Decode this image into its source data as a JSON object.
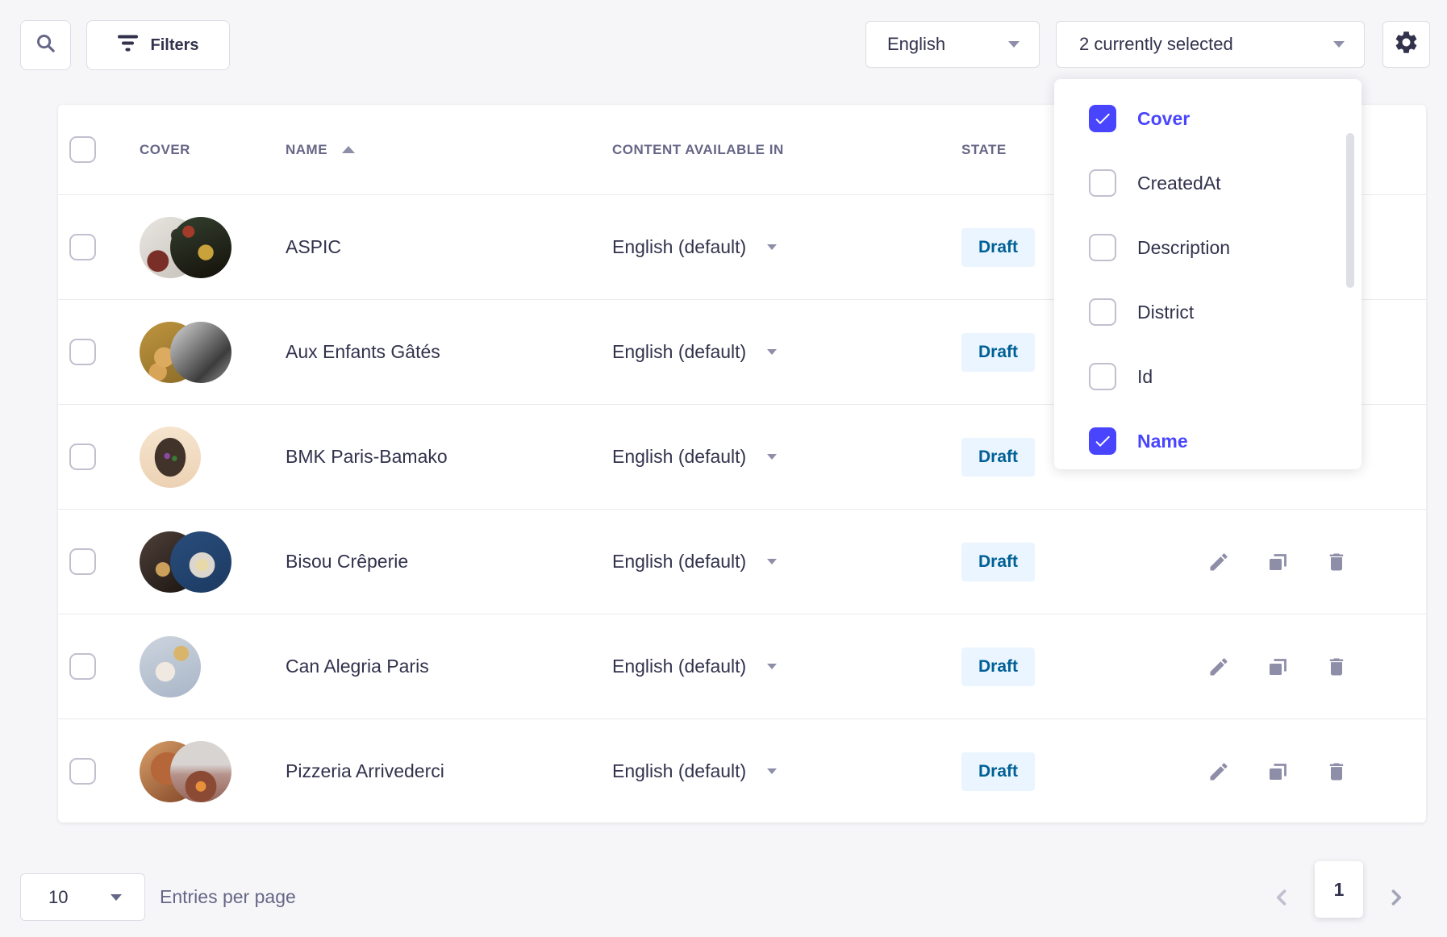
{
  "toolbar": {
    "filters_label": "Filters",
    "locale_select_value": "English",
    "columns_select_value": "2 currently selected"
  },
  "column_dropdown": {
    "items": [
      {
        "label": "Cover",
        "checked": true
      },
      {
        "label": "CreatedAt",
        "checked": false
      },
      {
        "label": "Description",
        "checked": false
      },
      {
        "label": "District",
        "checked": false
      },
      {
        "label": "Id",
        "checked": false
      },
      {
        "label": "Name",
        "checked": true
      }
    ]
  },
  "table": {
    "headers": {
      "cover": "COVER",
      "name": "NAME",
      "content": "CONTENT AVAILABLE IN",
      "state": "STATE"
    },
    "sort": {
      "column": "NAME",
      "direction": "ascending"
    },
    "rows": [
      {
        "name": "ASPIC",
        "content_available_in": "English (default)",
        "state": "Draft",
        "covers": [
          "radial-gradient(circle at 30% 72%, #7a2e28 0 17%, transparent 18%), radial-gradient(circle at 62% 30%, #3a3431 0 11%, transparent 12%), linear-gradient(140deg,#e9e5e0,#c6c1bb)",
          "radial-gradient(circle at 58% 58%, #c9a23c 0 15%, transparent 16%), radial-gradient(circle at 30% 24%, #a33b2a 0 9%, transparent 10%), linear-gradient(160deg,#33402f,#141009)"
        ]
      },
      {
        "name": "Aux Enfants Gâtés",
        "content_available_in": "English (default)",
        "state": "Draft",
        "covers": [
          "radial-gradient(circle at 40% 58%, #dcab60 0 19%, transparent 20%), radial-gradient(circle at 30% 82%, #d8a458 0 13%, transparent 14%), linear-gradient(150deg,#bf953f,#8a6a26)",
          "linear-gradient(135deg,#d9d9d9 0%,#8c8c8c 35%,#3c3c3c 70%,#9a9a9a 100%)"
        ]
      },
      {
        "name": "BMK Paris-Bamako",
        "content_available_in": "English (default)",
        "state": "Draft",
        "covers": [
          "radial-gradient(circle at 45% 48%, #8a4aa0 0 6%, transparent 7%), radial-gradient(circle at 57% 52%, #3a7a3a 0 5%, transparent 6%), radial-gradient(ellipse 32% 40% at 50% 50%, #42332a 0 78%, transparent 80%), linear-gradient(180deg,#f6e4ce,#ecd2b4)"
        ]
      },
      {
        "name": "Bisou Crêperie",
        "content_available_in": "English (default)",
        "state": "Draft",
        "covers": [
          "radial-gradient(circle at 38% 62%, #caa05a 0 13%, transparent 14%), linear-gradient(140deg,#50403a,#17120e)",
          "radial-gradient(circle at 52% 55%, #e8d9a8 0 13%, #dcd7ce 14% 27%, transparent 28%), linear-gradient(150deg,#2a4d7a,#1b3a63)"
        ]
      },
      {
        "name": "Can Alegria Paris",
        "content_available_in": "English (default)",
        "state": "Draft",
        "covers": [
          "radial-gradient(circle at 42% 58%, #efe9e2 0 19%, transparent 20%), radial-gradient(circle at 68% 28%, #d8b56a 0 12%, transparent 13%), radial-gradient(circle at 42% 58%, #b04a3a 0 6%, transparent 7%), linear-gradient(160deg,#ccd4dd,#a9b6c8)"
        ]
      },
      {
        "name": "Pizzeria Arrivederci",
        "content_available_in": "English (default)",
        "state": "Draft",
        "covers": [
          "radial-gradient(circle at 45% 45%, #b5673a 0 34%, transparent 35%), linear-gradient(140deg,#d9a06a,#7e4224)",
          "radial-gradient(circle at 50% 74%, #e8913a 0 9%, #8a4a33 10% 28%, transparent 29%), linear-gradient(180deg,#d8d4d2 0 38%, #b5928a 55%, #96655a)"
        ]
      }
    ]
  },
  "pagination": {
    "page_size": "10",
    "entries_label": "Entries per page",
    "current_page": "1"
  },
  "icons": {
    "toolbar": [
      "search-icon",
      "filter-icon",
      "gear-icon"
    ],
    "row_actions": [
      "edit-pencil-icon",
      "duplicate-icon",
      "trash-icon"
    ],
    "misc": [
      "caret-down-icon",
      "sort-ascending-icon",
      "checkmark-icon",
      "chevron-left-icon",
      "chevron-right-icon"
    ]
  },
  "colors": {
    "primary": "#4945FF",
    "badge_background": "#EAF5FF",
    "badge_text": "#006096",
    "icon_gray": "#8E8EA9",
    "border": "#DCDCE4",
    "divider": "#EAEAEF",
    "text_dark": "#32324D",
    "text_muted": "#666687",
    "page_background": "#F6F6F9"
  }
}
